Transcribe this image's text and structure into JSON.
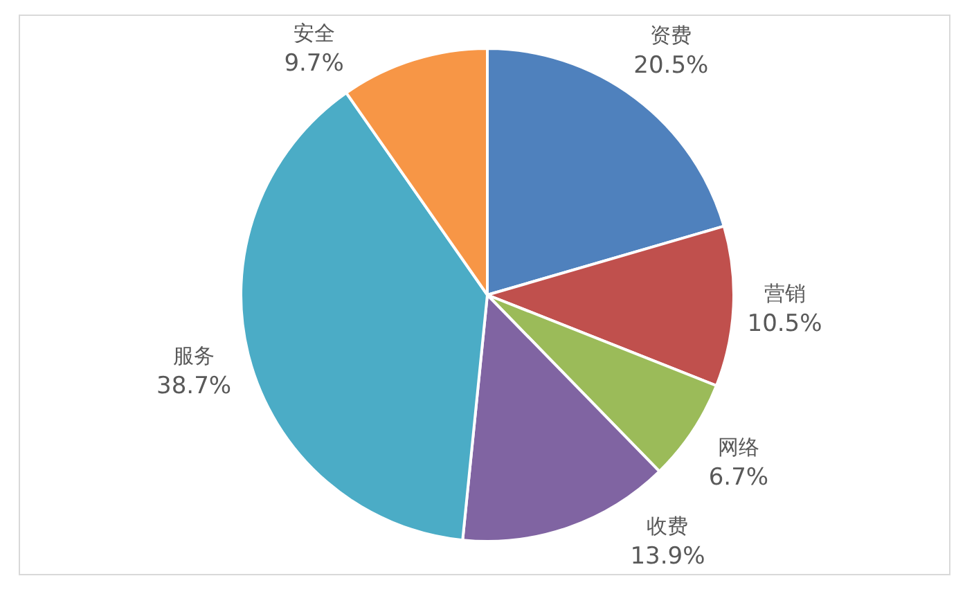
{
  "chart_data": {
    "type": "pie",
    "categories": [
      "资费",
      "营销",
      "网络",
      "收费",
      "服务",
      "安全"
    ],
    "values": [
      20.5,
      10.5,
      6.7,
      13.9,
      38.7,
      9.7
    ],
    "colors": [
      "#4f81bd",
      "#c0504d",
      "#9bbb59",
      "#8064a2",
      "#4bacc6",
      "#f79646"
    ],
    "value_labels": [
      "20.5%",
      "10.5%",
      "6.7%",
      "13.9%",
      "38.7%",
      "9.7%"
    ]
  }
}
